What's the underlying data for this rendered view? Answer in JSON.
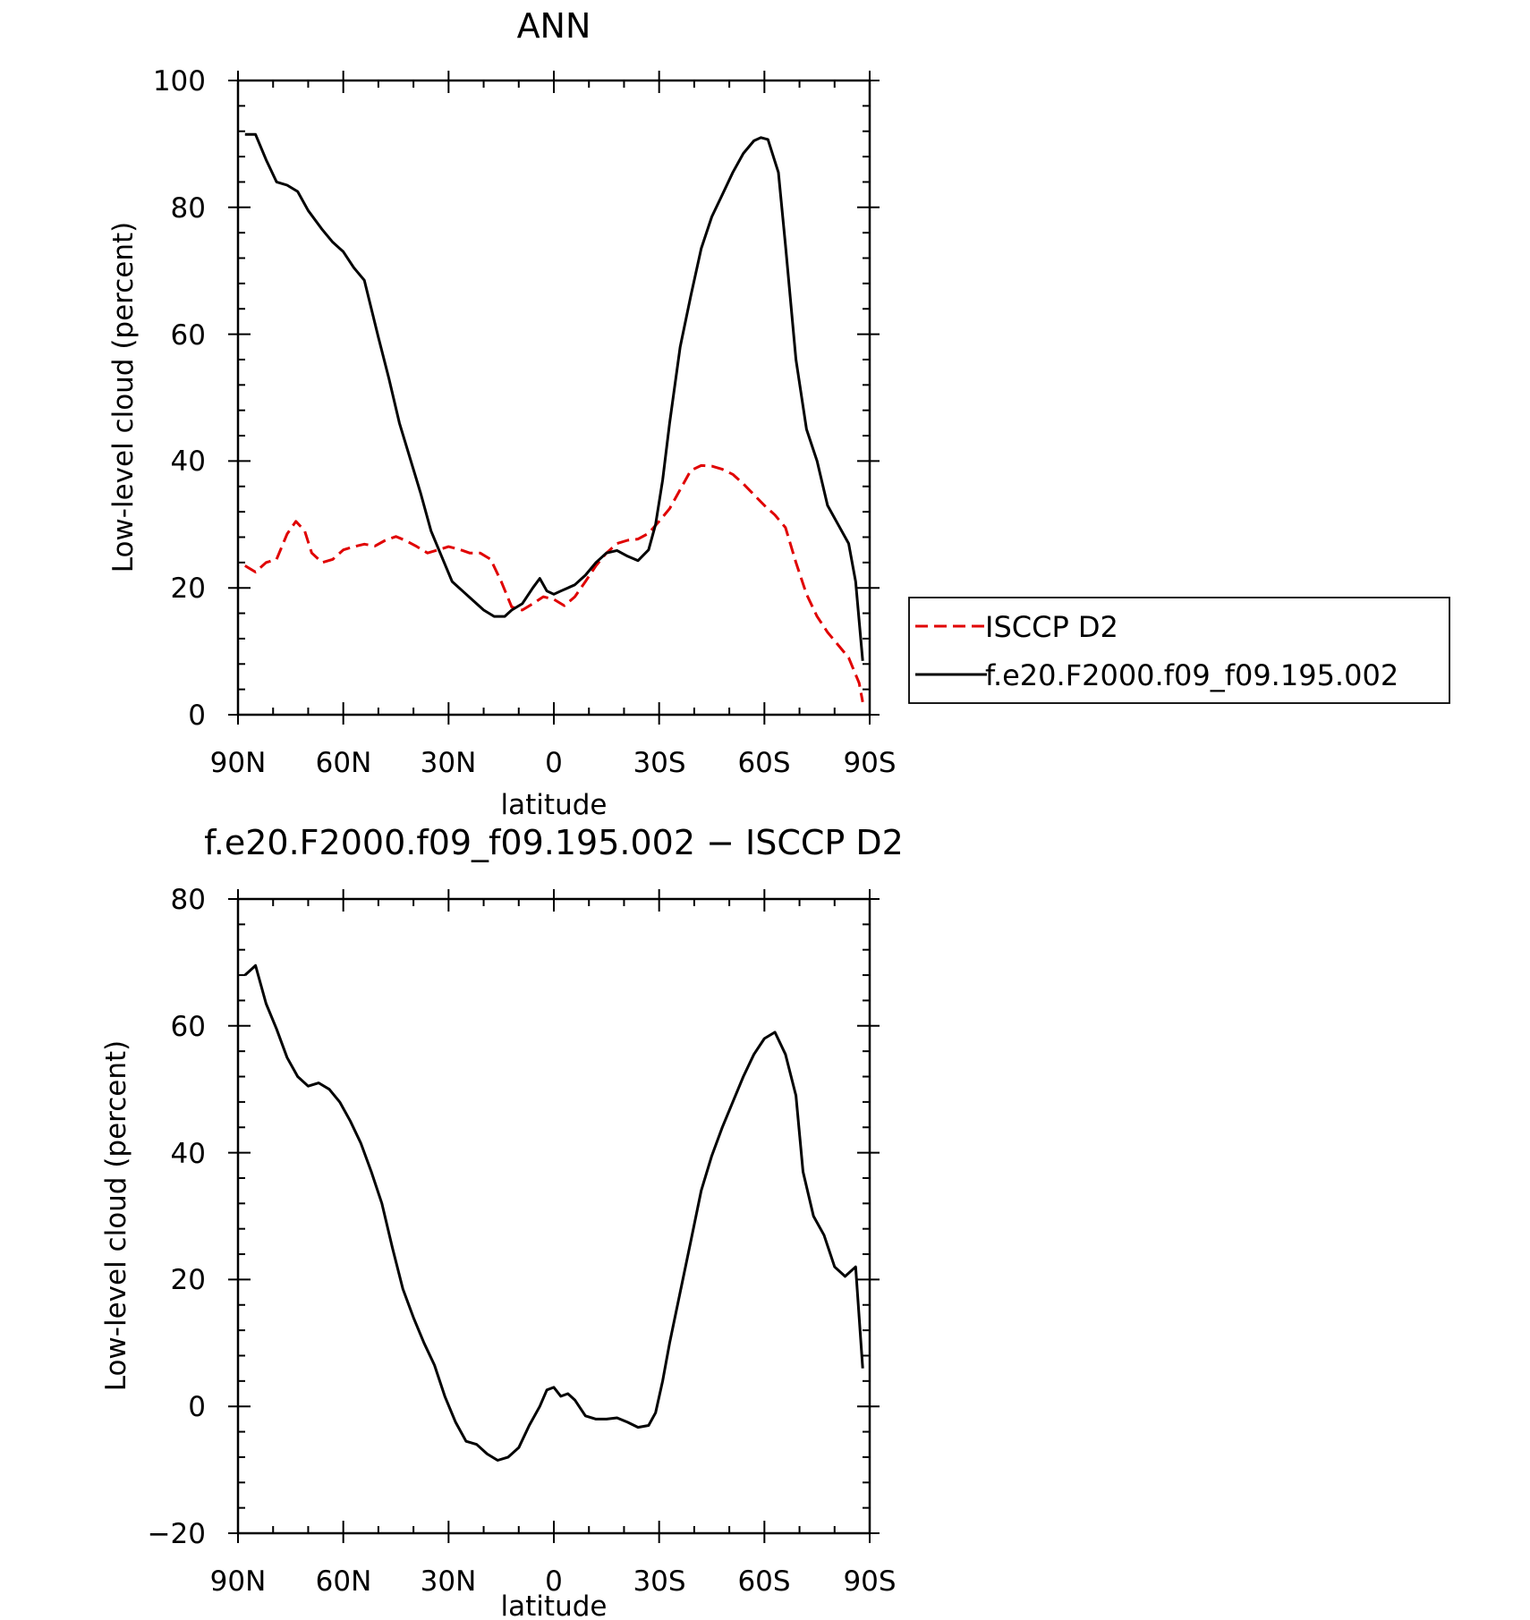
{
  "chart_data": [
    {
      "type": "line",
      "title": "ANN",
      "xlabel": "latitude",
      "ylabel": "Low-level cloud (percent)",
      "xlim": [
        90,
        -90
      ],
      "ylim": [
        0,
        100
      ],
      "x_ticks": [
        90,
        60,
        30,
        0,
        -30,
        -60,
        -90
      ],
      "x_tick_labels": [
        "90N",
        "60N",
        "30N",
        "0",
        "30S",
        "60S",
        "90S"
      ],
      "y_ticks": [
        0,
        20,
        40,
        60,
        80,
        100
      ],
      "y_tick_labels": [
        "0",
        "20",
        "40",
        "60",
        "80",
        "100"
      ],
      "legend_position": "right",
      "series": [
        {
          "name": "ISCCP D2",
          "color": "#e00000",
          "dash": "dashed",
          "x": [
            88,
            85,
            82,
            79,
            76,
            73.5,
            71,
            69,
            66,
            63,
            60,
            57,
            54,
            51,
            48,
            45,
            42,
            39,
            36,
            33,
            30,
            27,
            24,
            21,
            18,
            15,
            12,
            9,
            6,
            3,
            0,
            -3,
            -6,
            -9,
            -12,
            -15,
            -18,
            -21,
            -24,
            -27,
            -30,
            -33,
            -36,
            -39,
            -42,
            -45,
            -48,
            -51,
            -54,
            -57,
            -60,
            -63,
            -66,
            -69,
            -72,
            -75,
            -78,
            -81,
            -84,
            -87,
            -88
          ],
          "y": [
            23.5,
            22.5,
            24,
            24.5,
            28.5,
            30.5,
            29,
            25.5,
            24,
            24.5,
            26,
            26.5,
            26.9,
            26.6,
            27.5,
            28.1,
            27.4,
            26.5,
            25.5,
            26,
            26.5,
            26.1,
            25.5,
            25.5,
            24.5,
            21,
            17,
            16.5,
            17.5,
            18.6,
            18.2,
            17.2,
            18.6,
            21,
            23.5,
            25.5,
            27,
            27.5,
            27.7,
            28.6,
            30.5,
            32.5,
            35.5,
            38.5,
            39.3,
            39.2,
            38.7,
            37.9,
            36.4,
            34.7,
            33,
            31.5,
            29.5,
            24,
            19,
            15.5,
            13,
            11,
            9,
            5,
            2
          ]
        },
        {
          "name": "f.e20.F2000.f09_f09.195.002",
          "color": "#000000",
          "dash": "solid",
          "x": [
            88,
            85,
            82,
            79,
            76,
            73,
            70,
            66,
            63,
            60,
            57,
            54,
            50,
            47,
            44,
            41,
            38,
            35,
            32,
            29,
            26,
            23,
            20,
            17,
            14,
            12,
            9,
            6,
            4,
            2,
            0,
            -2,
            -4,
            -6,
            -9,
            -12,
            -15,
            -18,
            -21,
            -24,
            -27,
            -29,
            -31,
            -33,
            -36,
            -39,
            -42,
            -45,
            -48,
            -51,
            -54,
            -57,
            -59,
            -61,
            -64,
            -66,
            -69,
            -72,
            -75,
            -78,
            -81,
            -84,
            -86,
            -88
          ],
          "y": [
            91.5,
            91.5,
            87.5,
            84,
            83.5,
            82.5,
            79.5,
            76.5,
            74.5,
            73,
            70.5,
            68.5,
            59.5,
            53,
            46,
            40.5,
            35,
            29,
            25,
            21,
            19.5,
            18,
            16.5,
            15.5,
            15.5,
            16.5,
            17.5,
            20,
            21.5,
            19.5,
            19,
            19.5,
            20,
            20.5,
            22,
            24,
            25.5,
            25.9,
            25,
            24.3,
            26,
            30,
            37,
            46,
            58,
            66,
            73.5,
            78.5,
            82,
            85.5,
            88.5,
            90.5,
            91,
            90.7,
            85.5,
            74,
            56,
            45,
            40,
            33,
            30,
            27,
            21,
            8.5
          ]
        }
      ]
    },
    {
      "type": "line",
      "title": "f.e20.F2000.f09_f09.195.002 − ISCCP D2",
      "xlabel": "latitude",
      "ylabel": "Low-level cloud (percent)",
      "xlim": [
        90,
        -90
      ],
      "ylim": [
        -20,
        80
      ],
      "x_ticks": [
        90,
        60,
        30,
        0,
        -30,
        -60,
        -90
      ],
      "x_tick_labels": [
        "90N",
        "60N",
        "30N",
        "0",
        "30S",
        "60S",
        "90S"
      ],
      "y_ticks": [
        -20,
        0,
        20,
        40,
        60,
        80
      ],
      "y_tick_labels": [
        "−20",
        "0",
        "20",
        "40",
        "60",
        "80"
      ],
      "series": [
        {
          "color": "#000000",
          "dash": "solid",
          "x": [
            88,
            85,
            82,
            79,
            76,
            73,
            70,
            67,
            64,
            61,
            58,
            55,
            52,
            49,
            46,
            43,
            40,
            37,
            34,
            31,
            28,
            25,
            22,
            19,
            16,
            13,
            10,
            7,
            4,
            2,
            0,
            -2,
            -4,
            -6,
            -9,
            -12,
            -15,
            -18,
            -21,
            -24,
            -27,
            -29,
            -31,
            -33,
            -36,
            -39,
            -42,
            -45,
            -48,
            -51,
            -54,
            -57,
            -60,
            -63,
            -66,
            -69,
            -71,
            -74,
            -77,
            -80,
            -83,
            -86,
            -88
          ],
          "y": [
            68,
            69.5,
            63.5,
            59.5,
            55,
            52,
            50.5,
            51,
            50,
            48,
            45,
            41.5,
            37,
            32,
            25,
            18.5,
            14,
            10,
            6.5,
            1.5,
            -2.5,
            -5.5,
            -6,
            -7.5,
            -8.5,
            -8,
            -6.5,
            -3,
            0,
            2.6,
            3,
            1.6,
            2,
            1,
            -1.5,
            -2,
            -2,
            -1.8,
            -2.5,
            -3.3,
            -3,
            -1,
            4,
            10,
            18,
            26,
            34,
            39.5,
            44,
            48,
            52,
            55.5,
            58,
            59,
            55.5,
            49,
            37,
            30,
            27,
            22,
            20.5,
            22,
            6
          ]
        }
      ]
    }
  ]
}
